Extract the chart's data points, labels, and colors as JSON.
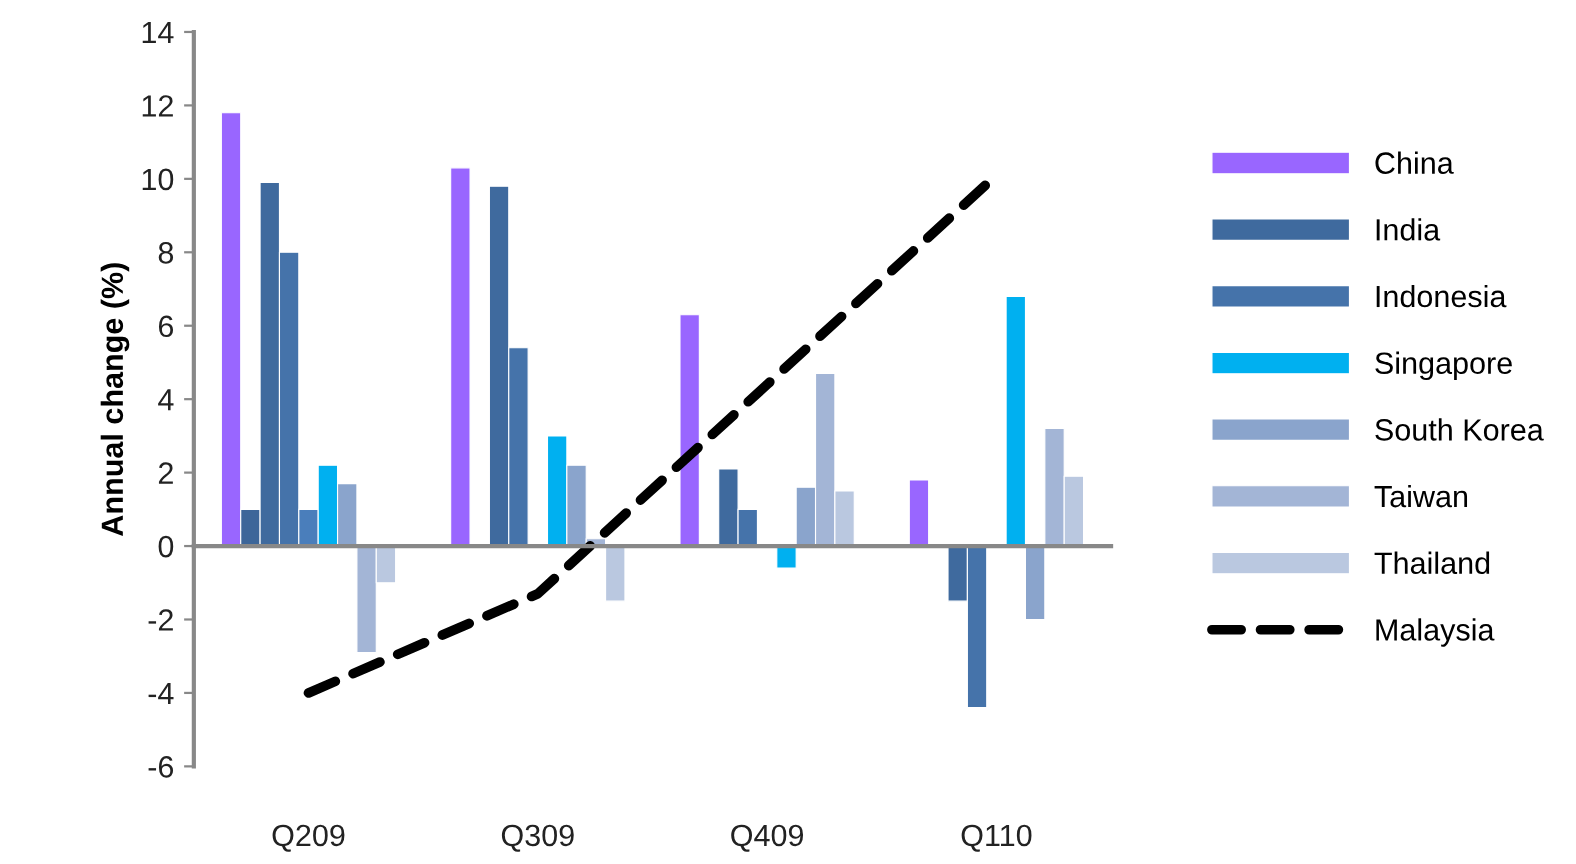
{
  "chart_data": {
    "type": "bar",
    "ylabel": "Annual change (%)",
    "categories": [
      "Q209",
      "Q309",
      "Q409",
      "Q110"
    ],
    "ylim": [
      -6,
      14
    ],
    "yticks": [
      -6,
      -4,
      -2,
      0,
      2,
      4,
      6,
      8,
      10,
      12,
      14
    ],
    "legend": "right",
    "series": [
      {
        "name": "China",
        "color": "#9966ff",
        "values": [
          11.8,
          10.3,
          6.3,
          1.8
        ]
      },
      {
        "color": "#3d6699",
        "values": [
          1.0,
          null,
          null,
          null
        ]
      },
      {
        "name": "India",
        "color": "#3f6a9e",
        "values": [
          9.9,
          9.8,
          2.1,
          -1.5
        ]
      },
      {
        "name": "Indonesia",
        "color": "#4573aa",
        "values": [
          8.0,
          5.4,
          1.0,
          -4.4
        ]
      },
      {
        "color": "#4a7ebb",
        "values": [
          1.0,
          null,
          null,
          null
        ]
      },
      {
        "name": "Singapore",
        "color": "#00b0f0",
        "values": [
          2.2,
          3.0,
          -0.6,
          6.8
        ]
      },
      {
        "name": "South Korea",
        "color": "#8aa4cc",
        "values": [
          1.7,
          2.2,
          1.6,
          -2.0
        ]
      },
      {
        "name": "Taiwan",
        "color": "#a3b5d6",
        "values": [
          -2.9,
          0.2,
          4.7,
          3.2
        ]
      },
      {
        "name": "Thailand",
        "color": "#bac8e0",
        "values": [
          -1.0,
          -1.5,
          1.5,
          1.9
        ]
      },
      {
        "name": "Malaysia",
        "type": "line",
        "color": "#000000",
        "line_style": "dashed",
        "values": [
          -4.0,
          -1.3,
          4.4,
          10.1
        ]
      }
    ]
  }
}
